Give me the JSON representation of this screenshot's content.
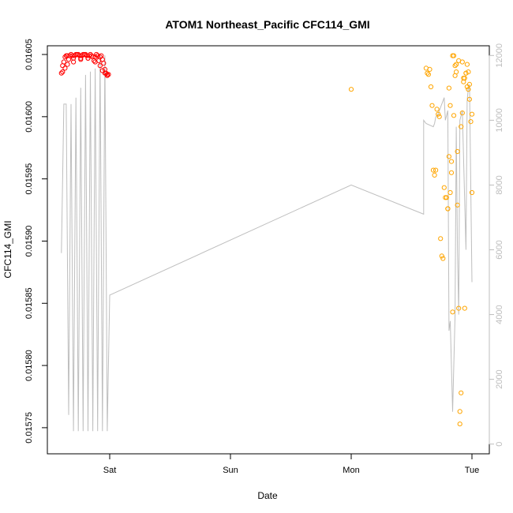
{
  "chart_data": {
    "type": "scatter",
    "title": "ATOM1 Northeast_Pacific CFC114_GMI",
    "xlabel": "Date",
    "ylabel": "CFC114_GMI",
    "x_ticks": [
      "Sat",
      "Sun",
      "Mon",
      "Tue"
    ],
    "x_range_days": [
      -0.45,
      3.05
    ],
    "ylim": [
      0.015729,
      0.016057
    ],
    "y_ticks": [
      0.01575,
      0.0158,
      0.01585,
      0.0159,
      0.01595,
      0.016,
      0.01605
    ],
    "y_tick_labels": [
      "0.01575",
      "0.01580",
      "0.01585",
      "0.01590",
      "0.01595",
      "0.01600",
      "0.01605"
    ],
    "y2lim": [
      -300,
      12300
    ],
    "y2_ticks": [
      0,
      2000,
      4000,
      6000,
      8000,
      10000,
      12000
    ],
    "y2_tick_labels": [
      "0",
      "2000",
      "4000",
      "6000",
      "8000",
      "10000",
      "12000"
    ],
    "colors": {
      "red_points": "#ff0000",
      "orange_points": "#ffa500",
      "altitude_line": "#bebebe"
    },
    "series": [
      {
        "style": "points",
        "color": "#ff0000",
        "x": [
          -0.4,
          -0.39,
          -0.38,
          -0.37,
          -0.36,
          -0.35,
          -0.34,
          -0.33,
          -0.32,
          -0.31,
          -0.3,
          -0.29,
          -0.28,
          -0.27,
          -0.26,
          -0.25,
          -0.24,
          -0.23,
          -0.22,
          -0.21,
          -0.2,
          -0.19,
          -0.18,
          -0.17,
          -0.16,
          -0.15,
          -0.14,
          -0.13,
          -0.12,
          -0.11,
          -0.1,
          -0.09,
          -0.08,
          -0.07,
          -0.06,
          -0.05,
          -0.04,
          -0.03,
          -0.02,
          -0.01,
          -0.39,
          -0.37,
          -0.35,
          -0.3,
          -0.24,
          -0.18,
          -0.12,
          -0.08,
          -0.06,
          -0.04,
          -0.02
        ],
        "y": [
          0.016035,
          0.016041,
          0.016044,
          0.016048,
          0.016049,
          0.016049,
          0.016046,
          0.016049,
          0.01605,
          0.016049,
          0.016047,
          0.016049,
          0.01605,
          0.01605,
          0.01605,
          0.016049,
          0.016047,
          0.016049,
          0.01605,
          0.01605,
          0.01605,
          0.016049,
          0.016047,
          0.016049,
          0.01605,
          0.016049,
          0.016048,
          0.016045,
          0.016048,
          0.01605,
          0.016049,
          0.016045,
          0.016048,
          0.016049,
          0.016046,
          0.016043,
          0.016038,
          0.016035,
          0.016034,
          0.016034,
          0.016036,
          0.016039,
          0.016042,
          0.016044,
          0.016046,
          0.016047,
          0.016044,
          0.016041,
          0.016037,
          0.016035,
          0.016033
        ]
      },
      {
        "style": "points",
        "color": "#ffa500",
        "x": [
          2.0,
          2.62,
          2.63,
          2.64,
          2.65,
          2.66,
          2.67,
          2.68,
          2.69,
          2.7,
          2.71,
          2.72,
          2.73,
          2.74,
          2.75,
          2.76,
          2.77,
          2.78,
          2.79,
          2.8,
          2.8,
          2.81,
          2.81,
          2.82,
          2.82,
          2.83,
          2.83,
          2.84,
          2.84,
          2.85,
          2.85,
          2.86,
          2.86,
          2.87,
          2.87,
          2.88,
          2.88,
          2.89,
          2.89,
          2.9,
          2.9,
          2.91,
          2.91,
          2.92,
          2.92,
          2.93,
          2.93,
          2.94,
          2.94,
          2.95,
          2.95,
          2.96,
          2.96,
          2.97,
          2.97,
          2.98,
          2.98,
          2.99,
          3.0,
          3.0
        ],
        "y": [
          0.016022,
          0.016039,
          0.016035,
          0.016034,
          0.016038,
          0.016024,
          0.016009,
          0.015957,
          0.015953,
          0.015957,
          0.016006,
          0.016002,
          0.016,
          0.015902,
          0.015888,
          0.015886,
          0.015943,
          0.015935,
          0.015935,
          0.015926,
          0.015926,
          0.016023,
          0.015968,
          0.016009,
          0.015939,
          0.015964,
          0.015955,
          0.016049,
          0.015843,
          0.016049,
          0.016001,
          0.016041,
          0.016033,
          0.016036,
          0.016042,
          0.015929,
          0.015972,
          0.015846,
          0.016045,
          0.015753,
          0.015763,
          0.015992,
          0.015778,
          0.016003,
          0.016044,
          0.016028,
          0.016031,
          0.016031,
          0.015846,
          0.016035,
          0.016035,
          0.016024,
          0.016042,
          0.016022,
          0.016036,
          0.016014,
          0.016026,
          0.015996,
          0.016002,
          0.015939
        ]
      },
      {
        "style": "line",
        "axis": "right",
        "color": "#bebebe",
        "x": [
          -0.4,
          -0.38,
          -0.36,
          -0.34,
          -0.32,
          -0.3,
          -0.28,
          -0.26,
          -0.24,
          -0.22,
          -0.2,
          -0.18,
          -0.16,
          -0.14,
          -0.12,
          -0.1,
          -0.08,
          -0.06,
          -0.04,
          -0.02,
          0.0,
          2.0,
          2.6,
          2.6,
          2.62,
          2.68,
          2.69,
          2.7,
          2.72,
          2.74,
          2.76,
          2.77,
          2.78,
          2.8,
          2.81,
          2.82,
          2.84,
          2.86,
          2.87,
          2.88,
          2.89,
          2.9,
          2.92,
          2.95,
          2.96,
          2.97,
          2.98,
          3.0
        ],
        "y": [
          5900,
          10500,
          10500,
          900,
          10500,
          400,
          10700,
          400,
          11000,
          400,
          11400,
          400,
          11500,
          400,
          11600,
          400,
          12000,
          400,
          12000,
          400,
          4600,
          8000,
          7100,
          10000,
          9900,
          9800,
          9900,
          10100,
          10200,
          10400,
          10600,
          10700,
          10000,
          10300,
          3500,
          3800,
          1000,
          4000,
          9800,
          6000,
          4000,
          10000,
          10300,
          6000,
          10600,
          11000,
          11100,
          5000
        ]
      }
    ]
  }
}
